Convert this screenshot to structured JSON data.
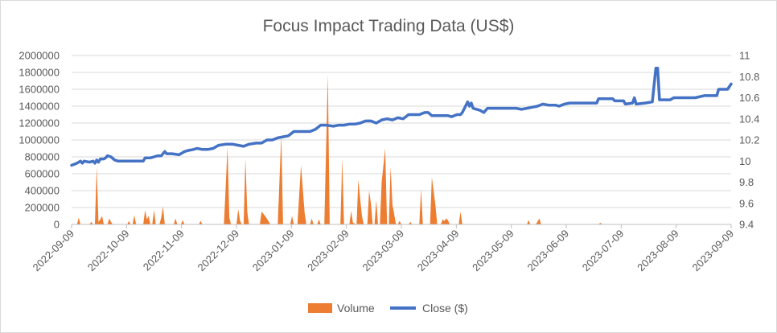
{
  "chart_data": {
    "type": "combo-area-line",
    "title": "Focus Impact Trading Data (US$)",
    "x_tick_labels": [
      "2022-09-09",
      "2022-10-09",
      "2022-11-09",
      "2022-12-09",
      "2023-01-09",
      "2023-02-09",
      "2023-03-09",
      "2023-04-09",
      "2023-05-09",
      "2023-06-09",
      "2023-07-09",
      "2023-08-09",
      "2023-09-09"
    ],
    "x_range_days": [
      0,
      368
    ],
    "y_left": {
      "min": 0,
      "max": 2000000,
      "step": 200000,
      "ticks": [
        "0",
        "200000",
        "400000",
        "600000",
        "800000",
        "1000000",
        "1200000",
        "1400000",
        "1600000",
        "1800000",
        "2000000"
      ]
    },
    "y_right": {
      "min": 9.4,
      "max": 11,
      "step": 0.2,
      "ticks": [
        "9.4",
        "9.6",
        "9.8",
        "10",
        "10.2",
        "10.4",
        "10.6",
        "10.8",
        "11"
      ]
    },
    "series": [
      {
        "name": "Volume",
        "type": "area",
        "axis": "left",
        "color": "#ED7D31",
        "points": [
          [
            0,
            0
          ],
          [
            3,
            0
          ],
          [
            4,
            80000
          ],
          [
            5,
            0
          ],
          [
            10,
            0
          ],
          [
            11,
            30000
          ],
          [
            12,
            0
          ],
          [
            13,
            0
          ],
          [
            14,
            680000
          ],
          [
            15,
            30000
          ],
          [
            16,
            60000
          ],
          [
            17,
            100000
          ],
          [
            18,
            0
          ],
          [
            20,
            0
          ],
          [
            21,
            70000
          ],
          [
            22,
            30000
          ],
          [
            23,
            0
          ],
          [
            31,
            0
          ],
          [
            32,
            40000
          ],
          [
            33,
            0
          ],
          [
            34,
            0
          ],
          [
            35,
            110000
          ],
          [
            36,
            0
          ],
          [
            40,
            0
          ],
          [
            41,
            170000
          ],
          [
            42,
            60000
          ],
          [
            43,
            100000
          ],
          [
            44,
            0
          ],
          [
            45,
            0
          ],
          [
            46,
            170000
          ],
          [
            47,
            0
          ],
          [
            49,
            0
          ],
          [
            50,
            80000
          ],
          [
            51,
            210000
          ],
          [
            52,
            0
          ],
          [
            57,
            0
          ],
          [
            58,
            70000
          ],
          [
            59,
            0
          ],
          [
            61,
            0
          ],
          [
            62,
            50000
          ],
          [
            63,
            0
          ],
          [
            71,
            0
          ],
          [
            72,
            40000
          ],
          [
            73,
            0
          ],
          [
            85,
            0
          ],
          [
            87,
            920000
          ],
          [
            88,
            80000
          ],
          [
            89,
            0
          ],
          [
            92,
            0
          ],
          [
            93,
            180000
          ],
          [
            94,
            40000
          ],
          [
            95,
            0
          ],
          [
            96,
            0
          ],
          [
            97,
            780000
          ],
          [
            98,
            150000
          ],
          [
            99,
            0
          ],
          [
            105,
            0
          ],
          [
            106,
            150000
          ],
          [
            108,
            100000
          ],
          [
            111,
            0
          ],
          [
            115,
            0
          ],
          [
            117,
            1060000
          ],
          [
            118,
            0
          ],
          [
            122,
            0
          ],
          [
            123,
            100000
          ],
          [
            124,
            0
          ],
          [
            126,
            0
          ],
          [
            128,
            700000
          ],
          [
            130,
            140000
          ],
          [
            131,
            0
          ],
          [
            133,
            0
          ],
          [
            134,
            70000
          ],
          [
            135,
            0
          ],
          [
            137,
            0
          ],
          [
            138,
            60000
          ],
          [
            139,
            0
          ],
          [
            141,
            0
          ],
          [
            143,
            1780000
          ],
          [
            144,
            0
          ],
          [
            150,
            0
          ],
          [
            151,
            780000
          ],
          [
            152,
            0
          ],
          [
            155,
            0
          ],
          [
            156,
            160000
          ],
          [
            157,
            20000
          ],
          [
            159,
            0
          ],
          [
            160,
            530000
          ],
          [
            161,
            300000
          ],
          [
            162,
            100000
          ],
          [
            163,
            0
          ],
          [
            165,
            0
          ],
          [
            166,
            400000
          ],
          [
            167,
            250000
          ],
          [
            168,
            0
          ],
          [
            169,
            0
          ],
          [
            170,
            290000
          ],
          [
            171,
            0
          ],
          [
            172,
            0
          ],
          [
            173,
            500000
          ],
          [
            175,
            900000
          ],
          [
            176,
            0
          ],
          [
            177,
            0
          ],
          [
            178,
            680000
          ],
          [
            179,
            230000
          ],
          [
            180,
            120000
          ],
          [
            181,
            0
          ],
          [
            182,
            0
          ],
          [
            183,
            40000
          ],
          [
            184,
            0
          ],
          [
            188,
            0
          ],
          [
            189,
            30000
          ],
          [
            190,
            0
          ],
          [
            194,
            0
          ],
          [
            195,
            420000
          ],
          [
            196,
            0
          ],
          [
            200,
            0
          ],
          [
            201,
            560000
          ],
          [
            203,
            230000
          ],
          [
            204,
            0
          ],
          [
            206,
            0
          ],
          [
            207,
            60000
          ],
          [
            208,
            40000
          ],
          [
            209,
            70000
          ],
          [
            210,
            50000
          ],
          [
            211,
            0
          ],
          [
            216,
            0
          ],
          [
            217,
            150000
          ],
          [
            218,
            0
          ],
          [
            254,
            0
          ],
          [
            255,
            50000
          ],
          [
            256,
            0
          ],
          [
            259,
            0
          ],
          [
            261,
            70000
          ],
          [
            262,
            0
          ],
          [
            294,
            0
          ],
          [
            295,
            20000
          ],
          [
            296,
            0
          ],
          [
            368,
            0
          ]
        ]
      },
      {
        "name": "Close ($)",
        "type": "line",
        "axis": "right",
        "color": "#4472C4",
        "points": [
          [
            0,
            9.96
          ],
          [
            3,
            9.98
          ],
          [
            5,
            10.0
          ],
          [
            6,
            9.98
          ],
          [
            7,
            10.0
          ],
          [
            10,
            9.99
          ],
          [
            12,
            10.0
          ],
          [
            13,
            9.98
          ],
          [
            14,
            10.01
          ],
          [
            15,
            9.99
          ],
          [
            16,
            10.02
          ],
          [
            18,
            10.02
          ],
          [
            19,
            10.03
          ],
          [
            20,
            10.05
          ],
          [
            22,
            10.04
          ],
          [
            24,
            10.01
          ],
          [
            26,
            10.0
          ],
          [
            30,
            10.0
          ],
          [
            33,
            10.0
          ],
          [
            36,
            10.0
          ],
          [
            40,
            10.0
          ],
          [
            41,
            10.03
          ],
          [
            44,
            10.03
          ],
          [
            46,
            10.04
          ],
          [
            48,
            10.05
          ],
          [
            50,
            10.05
          ],
          [
            52,
            10.09
          ],
          [
            53,
            10.07
          ],
          [
            56,
            10.07
          ],
          [
            60,
            10.06
          ],
          [
            63,
            10.09
          ],
          [
            65,
            10.1
          ],
          [
            68,
            10.11
          ],
          [
            70,
            10.12
          ],
          [
            73,
            10.11
          ],
          [
            76,
            10.11
          ],
          [
            79,
            10.12
          ],
          [
            82,
            10.15
          ],
          [
            86,
            10.16
          ],
          [
            90,
            10.16
          ],
          [
            93,
            10.15
          ],
          [
            96,
            10.14
          ],
          [
            99,
            10.16
          ],
          [
            103,
            10.17
          ],
          [
            106,
            10.17
          ],
          [
            109,
            10.2
          ],
          [
            112,
            10.2
          ],
          [
            115,
            10.22
          ],
          [
            118,
            10.23
          ],
          [
            121,
            10.24
          ],
          [
            124,
            10.28
          ],
          [
            130,
            10.28
          ],
          [
            133,
            10.28
          ],
          [
            136,
            10.3
          ],
          [
            139,
            10.34
          ],
          [
            142,
            10.34
          ],
          [
            146,
            10.33
          ],
          [
            149,
            10.34
          ],
          [
            152,
            10.34
          ],
          [
            155,
            10.35
          ],
          [
            158,
            10.35
          ],
          [
            161,
            10.36
          ],
          [
            164,
            10.38
          ],
          [
            167,
            10.38
          ],
          [
            170,
            10.36
          ],
          [
            173,
            10.39
          ],
          [
            176,
            10.4
          ],
          [
            179,
            10.39
          ],
          [
            182,
            10.41
          ],
          [
            185,
            10.4
          ],
          [
            188,
            10.44
          ],
          [
            191,
            10.44
          ],
          [
            194,
            10.44
          ],
          [
            197,
            10.46
          ],
          [
            199,
            10.46
          ],
          [
            201,
            10.43
          ],
          [
            203,
            10.43
          ],
          [
            207,
            10.43
          ],
          [
            210,
            10.43
          ],
          [
            212,
            10.42
          ],
          [
            215,
            10.44
          ],
          [
            217,
            10.44
          ],
          [
            218,
            10.46
          ],
          [
            221,
            10.56
          ],
          [
            222,
            10.52
          ],
          [
            223,
            10.55
          ],
          [
            224,
            10.5
          ],
          [
            226,
            10.49
          ],
          [
            228,
            10.48
          ],
          [
            230,
            10.46
          ],
          [
            232,
            10.5
          ],
          [
            237,
            10.5
          ],
          [
            242,
            10.5
          ],
          [
            248,
            10.5
          ],
          [
            251,
            10.49
          ],
          [
            254,
            10.5
          ],
          [
            257,
            10.51
          ],
          [
            260,
            10.52
          ],
          [
            263,
            10.54
          ],
          [
            266,
            10.53
          ],
          [
            270,
            10.53
          ],
          [
            272,
            10.52
          ],
          [
            275,
            10.54
          ],
          [
            278,
            10.55
          ],
          [
            282,
            10.55
          ],
          [
            285,
            10.55
          ],
          [
            287,
            10.55
          ],
          [
            290,
            10.55
          ],
          [
            293,
            10.55
          ],
          [
            294,
            10.59
          ],
          [
            298,
            10.59
          ],
          [
            302,
            10.59
          ],
          [
            303,
            10.57
          ],
          [
            306,
            10.57
          ],
          [
            308,
            10.57
          ],
          [
            309,
            10.54
          ],
          [
            313,
            10.55
          ],
          [
            314,
            10.6
          ],
          [
            315,
            10.54
          ],
          [
            320,
            10.55
          ],
          [
            324,
            10.56
          ],
          [
            326,
            10.88
          ],
          [
            327,
            10.88
          ],
          [
            328,
            10.58
          ],
          [
            334,
            10.58
          ],
          [
            336,
            10.6
          ],
          [
            341,
            10.6
          ],
          [
            348,
            10.6
          ],
          [
            353,
            10.62
          ],
          [
            354,
            10.62
          ],
          [
            360,
            10.62
          ],
          [
            361,
            10.68
          ],
          [
            366,
            10.68
          ],
          [
            368,
            10.73
          ]
        ]
      }
    ],
    "legend": {
      "position": "bottom",
      "entries": [
        "Volume",
        "Close ($)"
      ]
    }
  }
}
